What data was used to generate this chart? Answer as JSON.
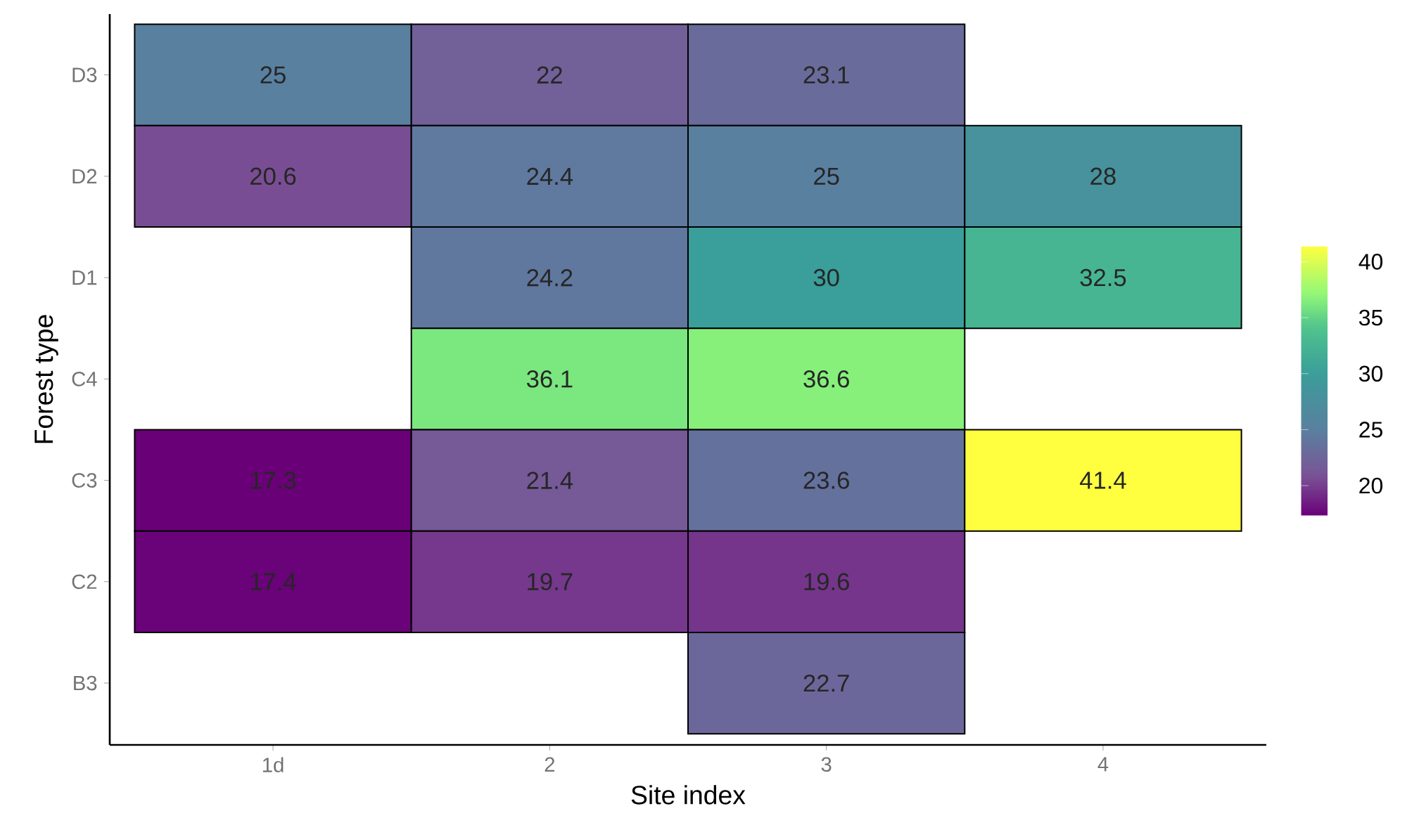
{
  "chart_data": {
    "type": "heatmap",
    "xlabel": "Site index",
    "ylabel": "Forest type",
    "categories": [
      "1d",
      "2",
      "3",
      "4"
    ],
    "y_categories": [
      "D3",
      "D2",
      "D1",
      "C4",
      "C3",
      "C2",
      "B3"
    ],
    "cells": [
      [
        25,
        22,
        23.1,
        null
      ],
      [
        20.6,
        24.4,
        25,
        28
      ],
      [
        null,
        24.2,
        30,
        32.5
      ],
      [
        null,
        36.1,
        36.6,
        null
      ],
      [
        17.3,
        21.4,
        23.6,
        41.4
      ],
      [
        17.4,
        19.7,
        19.6,
        null
      ],
      [
        null,
        null,
        22.7,
        null
      ]
    ],
    "cell_labels": [
      [
        "25",
        "22",
        "23.1",
        null
      ],
      [
        "20.6",
        "24.4",
        "25",
        "28"
      ],
      [
        null,
        "24.2",
        "30",
        "32.5"
      ],
      [
        null,
        "36.1",
        "36.6",
        null
      ],
      [
        "17.3",
        "21.4",
        "23.6",
        "41.4"
      ],
      [
        "17.4",
        "19.7",
        "19.6",
        null
      ],
      [
        null,
        null,
        "22.7",
        null
      ]
    ],
    "clim": [
      17.3,
      41.4
    ],
    "cticks": [
      20,
      25,
      30,
      35,
      40
    ]
  }
}
